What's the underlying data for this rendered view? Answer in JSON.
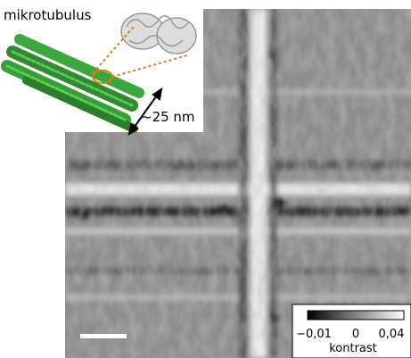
{
  "inset": {
    "title": "mikrotubulus",
    "scale_label": "~25 nm"
  },
  "colorbar": {
    "tick_labels": [
      "−0,01",
      "0",
      "0,04"
    ],
    "label": "kontrast"
  }
}
